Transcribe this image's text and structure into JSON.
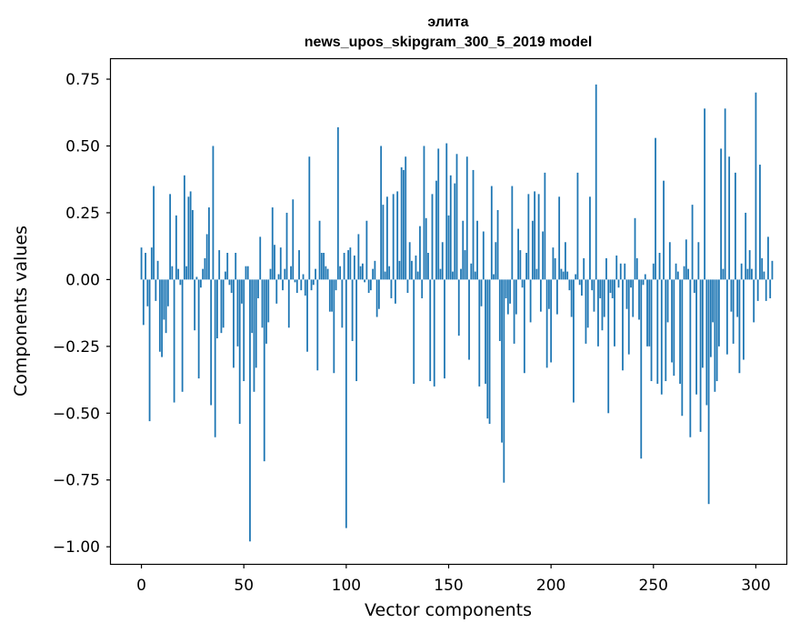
{
  "chart_data": {
    "type": "bar",
    "title_line1": "элита",
    "title_line2": "news_upos_skipgram_300_5_2019 model",
    "xlabel": "Vector components",
    "ylabel": "Components values",
    "xlim": [
      -14.9,
      314.9
    ],
    "ylim": [
      -1.064,
      0.825
    ],
    "xticks": [
      0,
      50,
      100,
      150,
      200,
      250,
      300
    ],
    "xtick_labels": [
      "0",
      "50",
      "100",
      "150",
      "200",
      "250",
      "300"
    ],
    "yticks": [
      -1.0,
      -0.75,
      -0.5,
      -0.25,
      0.0,
      0.25,
      0.5,
      0.75
    ],
    "ytick_labels": [
      "−1.00",
      "−0.75",
      "−0.50",
      "−0.25",
      "0.00",
      "0.25",
      "0.50",
      "0.75"
    ],
    "bar_color": "#1f77b4",
    "values": [
      0.12,
      -0.17,
      0.1,
      -0.1,
      -0.53,
      0.12,
      0.35,
      -0.08,
      0.07,
      -0.27,
      -0.29,
      -0.15,
      -0.2,
      -0.1,
      0.32,
      0.05,
      -0.46,
      0.24,
      0.04,
      -0.02,
      -0.42,
      0.39,
      0.05,
      0.31,
      0.33,
      0.26,
      -0.19,
      0.01,
      -0.37,
      -0.03,
      0.04,
      0.08,
      0.17,
      0.27,
      -0.47,
      0.5,
      -0.59,
      -0.22,
      0.11,
      -0.2,
      -0.18,
      0.03,
      0.1,
      -0.02,
      -0.05,
      -0.33,
      0.1,
      -0.25,
      -0.54,
      -0.09,
      -0.38,
      0.05,
      0.05,
      -0.98,
      -0.2,
      -0.42,
      -0.33,
      -0.07,
      0.16,
      -0.18,
      -0.68,
      -0.24,
      -0.16,
      0.04,
      0.27,
      0.13,
      -0.09,
      0.02,
      0.12,
      -0.04,
      0.04,
      0.25,
      -0.18,
      0.05,
      0.3,
      -0.01,
      -0.05,
      0.11,
      -0.04,
      0.02,
      -0.06,
      -0.27,
      0.46,
      -0.04,
      -0.02,
      0.04,
      -0.34,
      0.22,
      0.1,
      0.1,
      0.05,
      0.04,
      -0.12,
      -0.12,
      -0.35,
      -0.04,
      0.57,
      0.05,
      -0.18,
      0.1,
      -0.93,
      0.11,
      0.12,
      -0.23,
      0.09,
      -0.38,
      0.17,
      0.05,
      0.06,
      -0.01,
      0.22,
      -0.05,
      -0.04,
      0.04,
      0.07,
      -0.14,
      -0.11,
      0.5,
      0.28,
      0.03,
      0.31,
      0.05,
      -0.07,
      0.32,
      -0.09,
      0.33,
      0.07,
      0.42,
      0.41,
      0.46,
      -0.05,
      0.14,
      0.07,
      -0.39,
      0.09,
      0.03,
      0.2,
      -0.07,
      0.5,
      0.23,
      0.1,
      -0.38,
      0.32,
      -0.4,
      0.37,
      0.49,
      0.04,
      0.14,
      -0.37,
      0.51,
      0.24,
      0.39,
      0.03,
      0.36,
      0.47,
      -0.21,
      0.04,
      0.22,
      0.11,
      0.46,
      -0.3,
      0.06,
      0.41,
      0.03,
      0.22,
      -0.4,
      -0.1,
      0.18,
      -0.39,
      -0.52,
      -0.54,
      0.35,
      0.02,
      0.14,
      0.26,
      -0.23,
      -0.61,
      -0.76,
      -0.07,
      -0.13,
      -0.09,
      0.35,
      -0.24,
      -0.13,
      0.19,
      0.11,
      -0.03,
      -0.35,
      0.1,
      0.32,
      -0.16,
      0.22,
      0.33,
      0.04,
      0.32,
      -0.12,
      0.18,
      0.4,
      -0.33,
      -0.11,
      -0.31,
      0.12,
      0.08,
      -0.13,
      0.31,
      0.04,
      0.03,
      0.14,
      0.03,
      -0.04,
      -0.14,
      -0.46,
      0.02,
      0.4,
      -0.02,
      -0.06,
      0.08,
      -0.24,
      -0.18,
      0.31,
      -0.04,
      -0.12,
      0.73,
      -0.25,
      -0.07,
      -0.19,
      -0.14,
      0.08,
      -0.5,
      -0.05,
      -0.07,
      -0.25,
      0.09,
      -0.03,
      0.06,
      -0.34,
      0.06,
      -0.11,
      -0.28,
      -0.03,
      -0.14,
      0.23,
      0.08,
      -0.15,
      -0.67,
      -0.02,
      0.02,
      -0.25,
      -0.25,
      -0.38,
      0.06,
      0.53,
      -0.39,
      0.1,
      -0.43,
      0.37,
      -0.38,
      -0.16,
      0.14,
      -0.31,
      -0.36,
      0.06,
      0.03,
      -0.39,
      -0.51,
      0.05,
      0.15,
      0.04,
      -0.59,
      0.28,
      -0.05,
      -0.43,
      0.14,
      -0.57,
      -0.33,
      0.64,
      -0.47,
      -0.84,
      -0.29,
      -0.16,
      -0.42,
      -0.38,
      -0.25,
      0.49,
      0.04,
      0.64,
      -0.28,
      0.46,
      -0.12,
      -0.24,
      0.4,
      -0.14,
      -0.35,
      0.06,
      -0.3,
      0.25,
      0.04,
      0.11,
      0.04,
      -0.16,
      0.7,
      -0.08,
      0.43,
      0.08,
      0.03,
      -0.08,
      0.16,
      -0.07,
      0.07
    ]
  }
}
